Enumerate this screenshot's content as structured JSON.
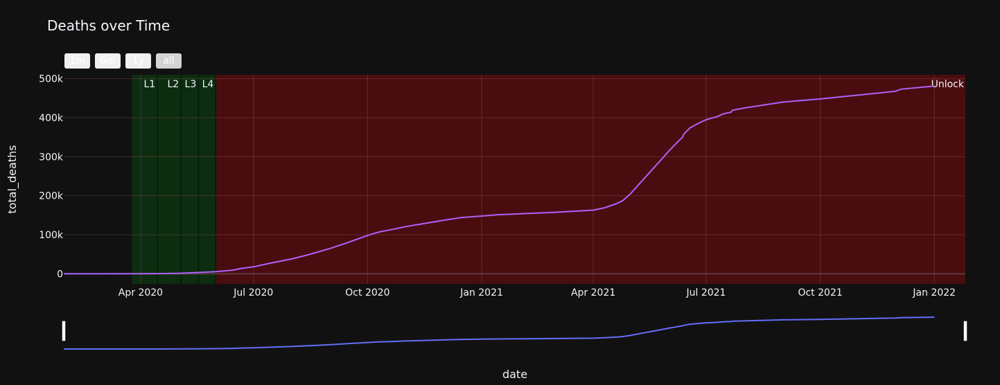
{
  "range_selector": {
    "buttons": [
      {
        "label": "1m",
        "active": false
      },
      {
        "label": "6m",
        "active": false
      },
      {
        "label": "1y",
        "active": false
      },
      {
        "label": "all",
        "active": true
      }
    ]
  },
  "chart_data": {
    "type": "line",
    "title": "Deaths over Time",
    "xlabel": "date",
    "ylabel": "total_deaths",
    "x_range": [
      "2020-01-30",
      "2022-01-26"
    ],
    "ylim": [
      -26000,
      510000
    ],
    "y_ticks": [
      {
        "value": 0,
        "label": "0"
      },
      {
        "value": 100000,
        "label": "100k"
      },
      {
        "value": 200000,
        "label": "200k"
      },
      {
        "value": 300000,
        "label": "300k"
      },
      {
        "value": 400000,
        "label": "400k"
      },
      {
        "value": 500000,
        "label": "500k"
      }
    ],
    "x_ticks": [
      {
        "date": "2020-04-01",
        "label": "Apr 2020"
      },
      {
        "date": "2020-07-01",
        "label": "Jul 2020"
      },
      {
        "date": "2020-10-01",
        "label": "Oct 2020"
      },
      {
        "date": "2021-01-01",
        "label": "Jan 2021"
      },
      {
        "date": "2021-04-01",
        "label": "Apr 2021"
      },
      {
        "date": "2021-07-01",
        "label": "Jul 2021"
      },
      {
        "date": "2021-10-01",
        "label": "Oct 2021"
      },
      {
        "date": "2022-01-01",
        "label": "Jan 2022"
      }
    ],
    "grid": true,
    "colors": {
      "background": "#111111",
      "grid": "#283442",
      "line": "#ab63fa",
      "rangeslider_line": "#636efa",
      "lockdown_fill": "#0d2d10",
      "unlock_fill": "#4a0d0f"
    },
    "phases": [
      {
        "label": "L1",
        "start": "2020-03-25",
        "end": "2020-04-14",
        "color": "lockdown"
      },
      {
        "label": "L2",
        "start": "2020-04-15",
        "end": "2020-05-03",
        "color": "lockdown"
      },
      {
        "label": "L3",
        "start": "2020-05-04",
        "end": "2020-05-17",
        "color": "lockdown"
      },
      {
        "label": "L4",
        "start": "2020-05-18",
        "end": "2020-05-31",
        "color": "lockdown"
      },
      {
        "label": "Unlock",
        "start": "2020-06-01",
        "end": "2022-01-26",
        "color": "unlock"
      }
    ],
    "series": [
      {
        "points": [
          [
            "2020-01-30",
            0
          ],
          [
            "2020-03-01",
            0
          ],
          [
            "2020-04-01",
            50
          ],
          [
            "2020-04-15",
            400
          ],
          [
            "2020-05-01",
            1100
          ],
          [
            "2020-05-15",
            2800
          ],
          [
            "2020-06-01",
            5400
          ],
          [
            "2020-06-15",
            9500
          ],
          [
            "2020-06-20",
            13000
          ],
          [
            "2020-07-01",
            17800
          ],
          [
            "2020-07-15",
            27500
          ],
          [
            "2020-08-01",
            38000
          ],
          [
            "2020-08-15",
            49500
          ],
          [
            "2020-09-01",
            65000
          ],
          [
            "2020-09-15",
            80000
          ],
          [
            "2020-10-01",
            98000
          ],
          [
            "2020-10-10",
            107000
          ],
          [
            "2020-10-20",
            113000
          ],
          [
            "2020-11-01",
            121000
          ],
          [
            "2020-12-01",
            137000
          ],
          [
            "2020-12-15",
            144000
          ],
          [
            "2021-01-01",
            148000
          ],
          [
            "2021-01-15",
            151500
          ],
          [
            "2021-02-01",
            153800
          ],
          [
            "2021-03-01",
            157500
          ],
          [
            "2021-04-01",
            163000
          ],
          [
            "2021-04-10",
            169000
          ],
          [
            "2021-04-20",
            180000
          ],
          [
            "2021-04-25",
            188000
          ],
          [
            "2021-05-01",
            205000
          ],
          [
            "2021-05-10",
            237000
          ],
          [
            "2021-05-20",
            272000
          ],
          [
            "2021-06-01",
            315000
          ],
          [
            "2021-06-08",
            338000
          ],
          [
            "2021-06-12",
            350000
          ],
          [
            "2021-06-13",
            358000
          ],
          [
            "2021-06-18",
            374000
          ],
          [
            "2021-06-25",
            386000
          ],
          [
            "2021-07-01",
            395000
          ],
          [
            "2021-07-10",
            403000
          ],
          [
            "2021-07-15",
            410000
          ],
          [
            "2021-07-21",
            414000
          ],
          [
            "2021-07-22",
            419000
          ],
          [
            "2021-08-01",
            425000
          ],
          [
            "2021-09-01",
            440000
          ],
          [
            "2021-10-01",
            448000
          ],
          [
            "2021-11-01",
            458000
          ],
          [
            "2021-12-01",
            468000
          ],
          [
            "2021-12-05",
            473000
          ],
          [
            "2022-01-01",
            481000
          ]
        ]
      }
    ]
  }
}
